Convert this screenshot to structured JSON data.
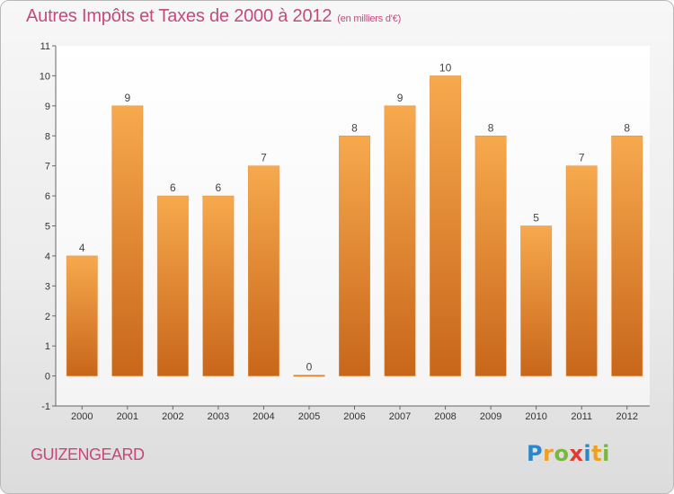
{
  "title": "Autres Impôts et Taxes de 2000 à 2012",
  "subtitle": "(en milliers d'€)",
  "commune": "GUIZENGEARD",
  "logo": {
    "letters": [
      "P",
      "r",
      "o",
      "x",
      "i",
      "t",
      "i"
    ],
    "colors": [
      "#2e86c8",
      "#f0a020",
      "#7ab83c",
      "#e23a2e",
      "#2e86c8",
      "#f0a020",
      "#7ab83c"
    ]
  },
  "colors": {
    "bar_top": "#f7a94e",
    "bar_bottom": "#c8661a",
    "title": "#c84a7a"
  },
  "chart_data": {
    "type": "bar",
    "title": "Autres Impôts et Taxes de 2000 à 2012",
    "subtitle": "(en milliers d'€)",
    "categories": [
      "2000",
      "2001",
      "2002",
      "2003",
      "2004",
      "2005",
      "2006",
      "2007",
      "2008",
      "2009",
      "2010",
      "2011",
      "2012"
    ],
    "values": [
      4,
      9,
      6,
      6,
      7,
      0,
      8,
      9,
      10,
      8,
      5,
      7,
      8
    ],
    "value_labels": [
      "4",
      "9",
      "6",
      "6",
      "7",
      "0",
      "8",
      "9",
      "10",
      "8",
      "5",
      "7",
      "8"
    ],
    "ylim": [
      -1,
      11
    ],
    "yticks": [
      "-1",
      "0",
      "1",
      "2",
      "3",
      "4",
      "5",
      "6",
      "7",
      "8",
      "9",
      "10",
      "11"
    ],
    "xlabel": "",
    "ylabel": "",
    "grid": false,
    "legend": "none"
  }
}
